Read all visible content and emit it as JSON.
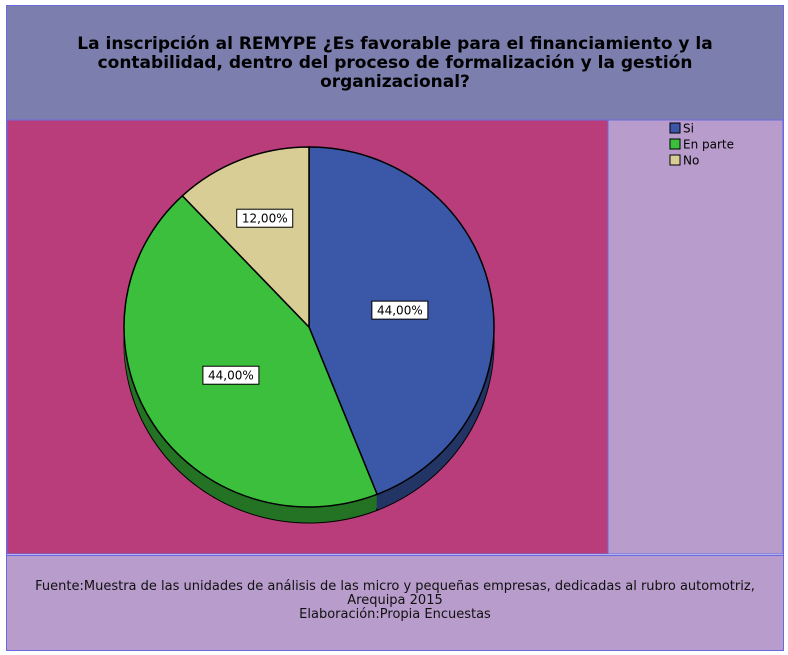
{
  "chart_data": {
    "type": "pie",
    "title": "La inscripción al REMYPE ¿Es favorable para el financiamiento y la contabilidad, dentro del proceso de formalización y la gestión organizacional?",
    "categories": [
      "Si",
      "En parte",
      "No"
    ],
    "values": [
      44,
      44,
      12
    ],
    "value_labels": [
      "44,00%",
      "44,00%",
      "12,00%"
    ],
    "colors": [
      "#3b58a8",
      "#3cbf3c",
      "#d9cd96"
    ],
    "legend": "top-right",
    "footer": [
      "Fuente:Muestra de las unidades de análisis de las micro y pequeñas empresas, dedicadas al rubro automotriz, Arequipa 2015",
      "Elaboración:Propia Encuestas"
    ]
  }
}
